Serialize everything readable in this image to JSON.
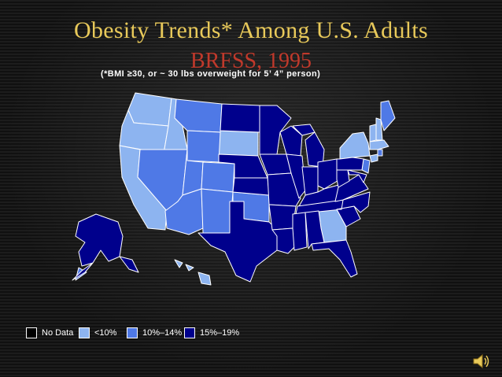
{
  "slide": {
    "title": "Obesity Trends* Among U.S. Adults",
    "subtitle": "BRFSS, 1995",
    "note": "(*BMI ≥30, or ~ 30 lbs overweight for 5’ 4” person)"
  },
  "legend": {
    "items": [
      {
        "label": "No Data",
        "color": "#000000"
      },
      {
        "label": "<10%",
        "color": "#8db4f0"
      },
      {
        "label": "10%–14%",
        "color": "#4f79e6"
      },
      {
        "label": "15%–19%",
        "color": "#00008c"
      }
    ]
  },
  "colors": {
    "title": "#e8c95a",
    "subtitle": "#c0392b",
    "state_border": "#ffffff"
  },
  "icons": {
    "speaker": "speaker-icon"
  }
}
